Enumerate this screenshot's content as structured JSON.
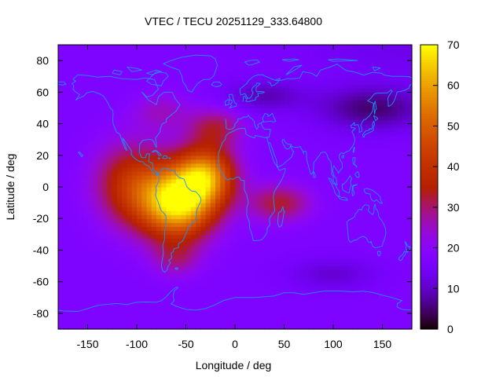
{
  "chart_data": {
    "type": "heatmap",
    "title": "VTEC / TECU 20251129_333.64800",
    "xlabel": "Longitude / deg",
    "ylabel": "Latitude / deg",
    "xlim": [
      -180,
      180
    ],
    "ylim": [
      -90,
      90
    ],
    "x_ticks": [
      -150,
      -100,
      -50,
      0,
      50,
      100,
      150
    ],
    "y_ticks": [
      -80,
      -60,
      -40,
      -20,
      0,
      20,
      40,
      60,
      80
    ],
    "colorbar": {
      "min": 0,
      "max": 70,
      "ticks": [
        0,
        10,
        20,
        30,
        40,
        50,
        60,
        70
      ],
      "colormap": "black-purple-red-orange-yellow"
    },
    "grid": false,
    "overlay": "coastlines",
    "overlay_color": "#1e90ff",
    "background_level_tecu": 17,
    "features": [
      {
        "name": "primary-equatorial-anomaly-peak",
        "lon": -58,
        "lat": -10,
        "vtec_tecu": 68
      },
      {
        "name": "secondary-anomaly-peak",
        "lon": -32,
        "lat": 8,
        "vtec_tecu": 62
      },
      {
        "name": "atlantic-africa-extension",
        "lon": 45,
        "lat": -10,
        "vtec_tecu": 38
      },
      {
        "name": "north-atlantic-extension",
        "lon": -20,
        "lat": 38,
        "vtec_tecu": 34
      },
      {
        "name": "asia-north-pacific-trough",
        "lon": 140,
        "lat": 50,
        "vtec_tecu": 5
      }
    ]
  }
}
